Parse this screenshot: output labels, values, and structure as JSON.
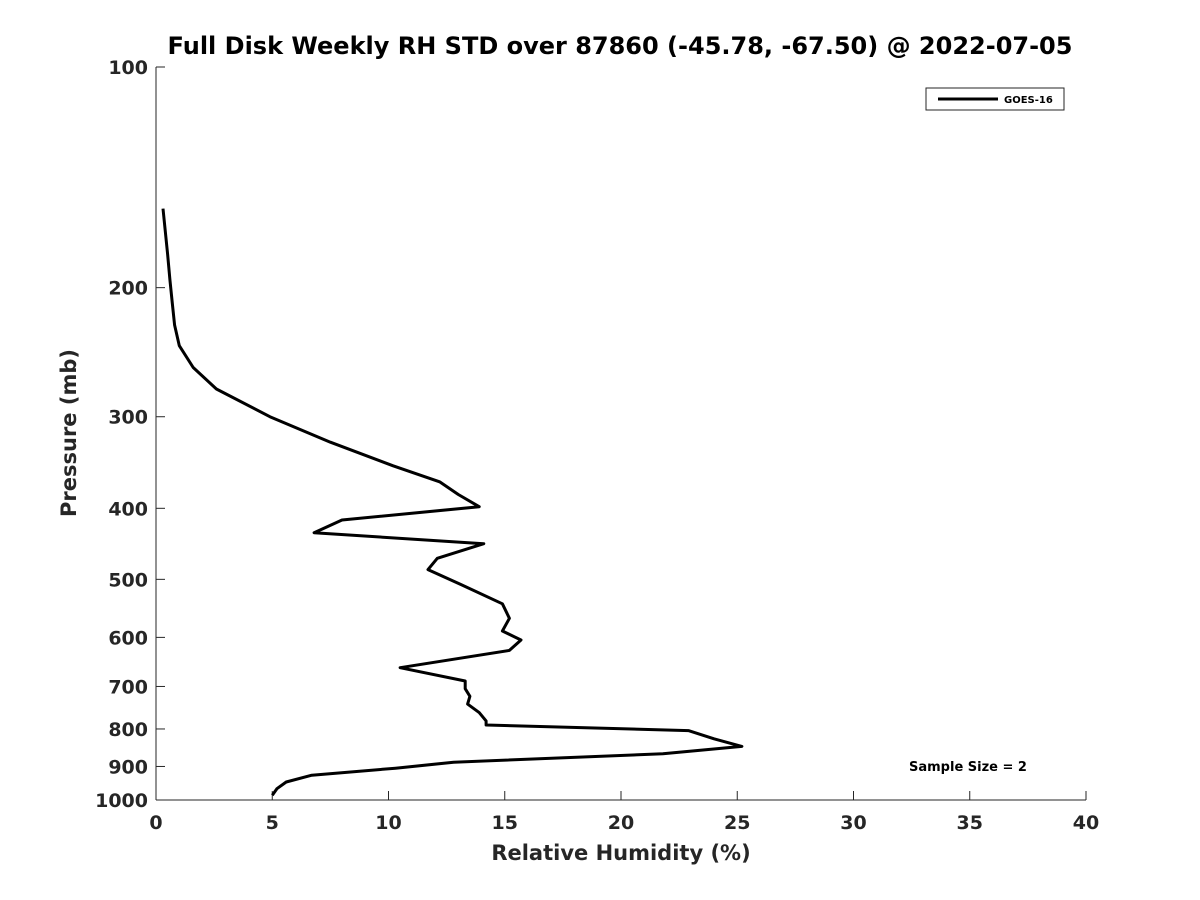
{
  "chart_data": {
    "type": "line",
    "title": "Full Disk Weekly RH STD over 87860 (-45.78, -67.50) @ 2022-07-05",
    "xlabel": "Relative Humidity (%)",
    "ylabel": "Pressure (mb)",
    "xlim": [
      0,
      40
    ],
    "ylim": [
      100,
      1000
    ],
    "y_scale": "log",
    "y_reversed": true,
    "grid": false,
    "legend_position": "top-right",
    "x_ticks": [
      0,
      5,
      10,
      15,
      20,
      25,
      30,
      35,
      40
    ],
    "x_tick_labels": [
      "0",
      "5",
      "10",
      "15",
      "20",
      "25",
      "30",
      "35",
      "40"
    ],
    "y_ticks": [
      100,
      200,
      300,
      400,
      500,
      600,
      700,
      800,
      900,
      1000
    ],
    "y_tick_labels": [
      "100",
      "200",
      "300",
      "400",
      "500",
      "600",
      "700",
      "800",
      "900",
      "1000"
    ],
    "series": [
      {
        "name": "GOES-16",
        "color": "#000000",
        "rh": [
          0.3,
          0.5,
          0.6,
          0.7,
          0.8,
          1.0,
          1.6,
          2.6,
          4.9,
          7.5,
          10.2,
          12.2,
          13.0,
          13.9,
          8.0,
          6.8,
          14.1,
          12.1,
          11.7,
          13.1,
          14.9,
          15.2,
          14.9,
          15.7,
          15.2,
          10.5,
          13.3,
          13.3,
          13.5,
          13.4,
          13.9,
          14.2,
          14.2,
          22.9,
          24.0,
          25.2,
          21.8,
          12.8,
          10.3,
          6.7,
          5.6,
          5.2,
          5.0
        ],
        "pressure": [
          156,
          180,
          195,
          210,
          225,
          240,
          257,
          275,
          300,
          325,
          350,
          368,
          383,
          398,
          415,
          432,
          447,
          468,
          485,
          508,
          540,
          565,
          588,
          605,
          625,
          660,
          688,
          705,
          722,
          740,
          760,
          780,
          790,
          804,
          825,
          845,
          865,
          888,
          905,
          925,
          945,
          965,
          985
        ]
      }
    ],
    "legend": [
      "GOES-16"
    ],
    "annotations": [
      "Sample Size = 2"
    ]
  }
}
